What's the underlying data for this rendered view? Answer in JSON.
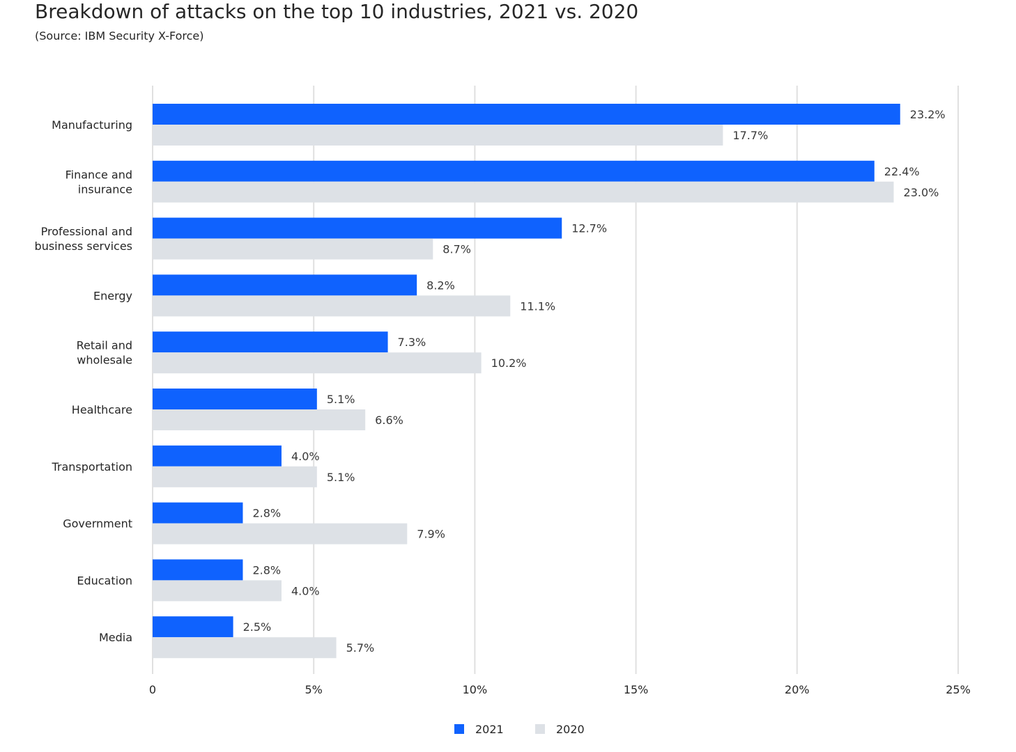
{
  "title": "Breakdown of attacks on the top 10 industries, 2021 vs. 2020",
  "subtitle": "(Source: IBM Security X-Force)",
  "colors": {
    "2021": "#0f62fe",
    "2020": "#dde1e6",
    "grid": "#e0e0e0"
  },
  "chart_data": {
    "type": "bar",
    "orientation": "horizontal",
    "title": "Breakdown of attacks on the top 10 industries, 2021 vs. 2020",
    "subtitle": "(Source: IBM Security X-Force)",
    "categories": [
      [
        "Manufacturing"
      ],
      [
        "Finance and",
        "insurance"
      ],
      [
        "Professional and",
        "business services"
      ],
      [
        "Energy"
      ],
      [
        "Retail and",
        "wholesale"
      ],
      [
        "Healthcare"
      ],
      [
        "Transportation"
      ],
      [
        "Government"
      ],
      [
        "Education"
      ],
      [
        "Media"
      ]
    ],
    "series": [
      {
        "name": "2021",
        "values": [
          23.2,
          22.4,
          12.7,
          8.2,
          7.3,
          5.1,
          4.0,
          2.8,
          2.8,
          2.5
        ],
        "labels": [
          "23.2%",
          "22.4%",
          "12.7%",
          "8.2%",
          "7.3%",
          "5.1%",
          "4.0%",
          "2.8%",
          "2.8%",
          "2.5%"
        ]
      },
      {
        "name": "2020",
        "values": [
          17.7,
          23.0,
          8.7,
          11.1,
          10.2,
          6.6,
          5.1,
          7.9,
          4.0,
          5.7
        ],
        "labels": [
          "17.7%",
          "23.0%",
          "8.7%",
          "11.1%",
          "10.2%",
          "6.6%",
          "5.1%",
          "7.9%",
          "4.0%",
          "5.7%"
        ]
      }
    ],
    "xlim": [
      0,
      25
    ],
    "xticks": [
      0,
      5,
      10,
      15,
      20,
      25
    ],
    "xtick_labels": [
      "0",
      "5%",
      "10%",
      "15%",
      "20%",
      "25%"
    ],
    "grid": true,
    "legend": "bottom-center"
  }
}
